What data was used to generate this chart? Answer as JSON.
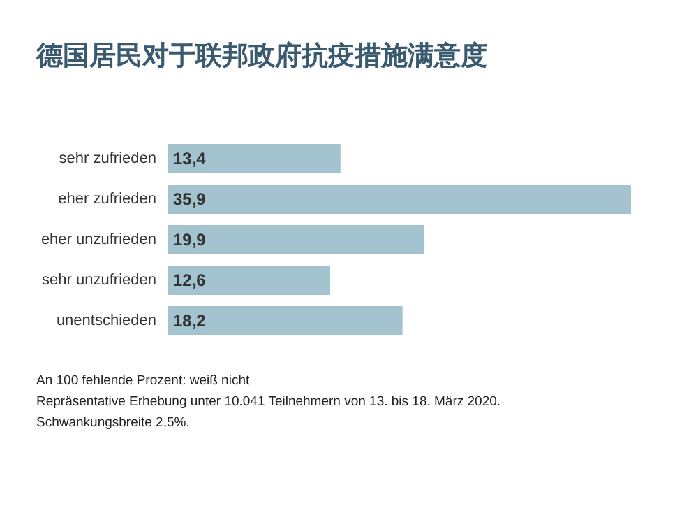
{
  "chart_data": {
    "type": "bar",
    "orientation": "horizontal",
    "title": "德国居民对于联邦政府抗疫措施满意度",
    "categories": [
      "sehr zufrieden",
      "eher zufrieden",
      "eher unzufrieden",
      "sehr unzufrieden",
      "unentschieden"
    ],
    "values": [
      13.4,
      35.9,
      19.9,
      12.6,
      18.2
    ],
    "value_labels": [
      "13,4",
      "35,9",
      "19,9",
      "12,6",
      "18,2"
    ],
    "color": "#a3c3cf",
    "annotations": [
      "An 100 fehlende Prozent: weiß nicht",
      "Repräsentative Erhebung unter 10.041 Teilnehmern von 13. bis 18. März 2020.",
      "Schwankungsbreite 2,5%."
    ]
  }
}
